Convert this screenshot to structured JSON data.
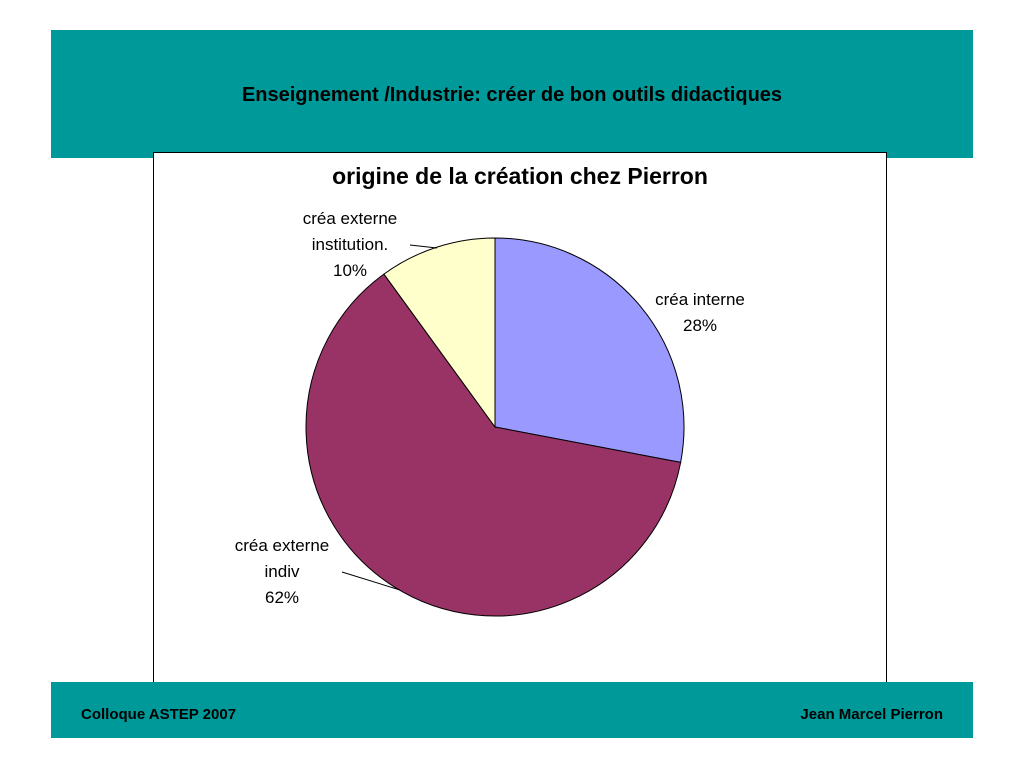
{
  "header": {
    "title": "Enseignement /Industrie:  créer de bon outils didactiques"
  },
  "footer": {
    "left": "Colloque ASTEP 2007",
    "right": "Jean Marcel Pierron"
  },
  "chart_data": {
    "type": "pie",
    "title": "origine de la création chez Pierron",
    "categories": [
      "créa interne",
      "créa externe indiv",
      "créa externe institution."
    ],
    "values": [
      28,
      62,
      10
    ],
    "value_labels": [
      "28%",
      "62%",
      "10%"
    ],
    "colors": [
      "#9999ff",
      "#993366",
      "#ffffcc"
    ]
  }
}
